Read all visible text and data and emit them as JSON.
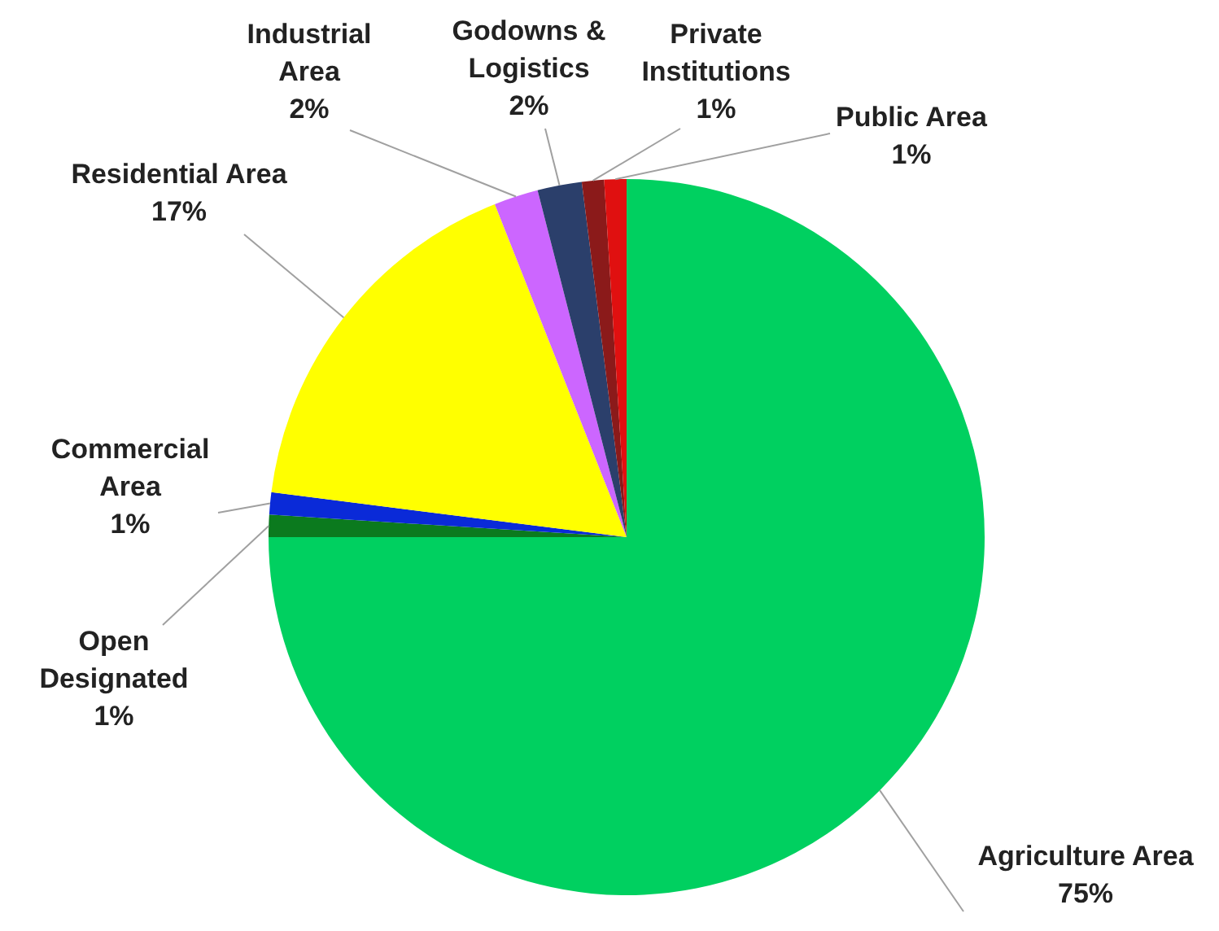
{
  "chart_data": {
    "type": "pie",
    "categories": [
      "Agriculture Area",
      "Open Designated",
      "Commercial Area",
      "Residential Area",
      "Industrial Area",
      "Godowns & Logistics",
      "Private Institutions",
      "Public Area"
    ],
    "values": [
      75,
      1,
      1,
      17,
      2,
      2,
      1,
      1
    ],
    "value_labels": [
      "75%",
      "1%",
      "1%",
      "17%",
      "2%",
      "2%",
      "1%",
      "1%"
    ],
    "colors": [
      "#00d060",
      "#0b7a1e",
      "#0a2ad8",
      "#ffff00",
      "#cc66ff",
      "#2b3f6b",
      "#8b1a1a",
      "#e01010"
    ]
  }
}
